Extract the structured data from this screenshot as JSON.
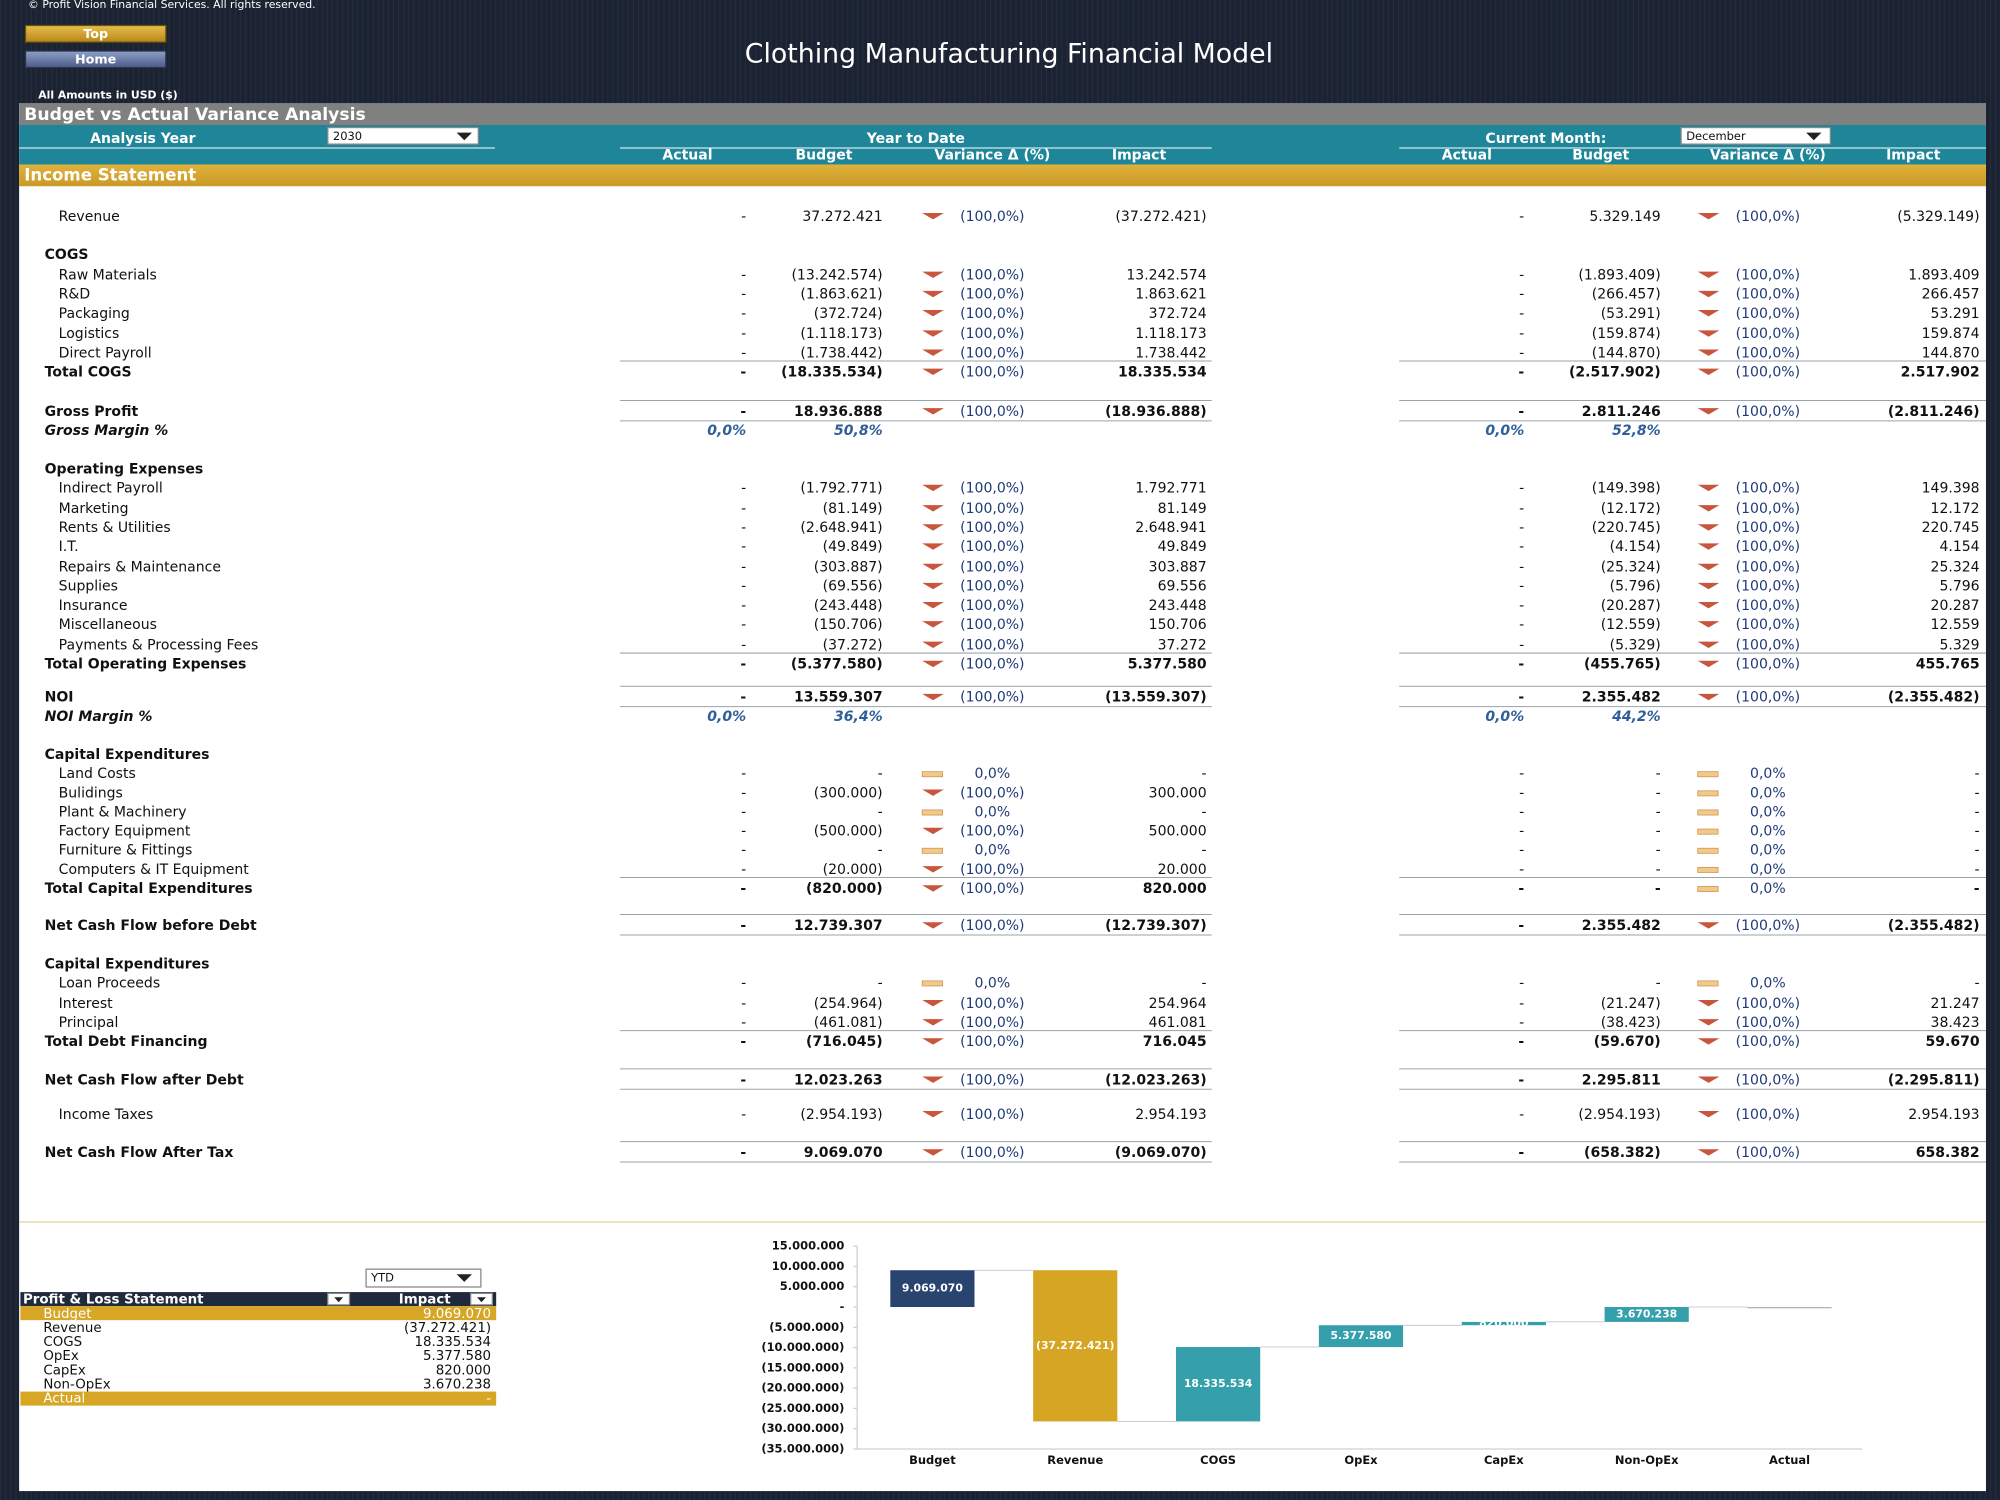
{
  "header": {
    "copyright": "© Profit Vision Financial Services. All rights reserved.",
    "buttons": [
      "Top",
      "Home"
    ],
    "title": "Clothing Manufacturing Financial Model",
    "currency_note": "All Amounts in  USD ($)"
  },
  "report": {
    "title": "Budget vs Actual Variance Analysis",
    "analysis_year_label": "Analysis Year",
    "analysis_year": "2030",
    "ytd_label": "Year to Date",
    "month_label": "Current Month:",
    "month": "December",
    "columns": [
      "Actual",
      "Budget",
      "Variance Δ  (%)",
      "Impact"
    ],
    "section": "Income Statement",
    "rows": [
      {
        "label": "Revenue",
        "ytd": [
          "-",
          "37.272.421",
          "(100,0%)",
          "(37.272.421)"
        ],
        "month": [
          "-",
          "5.329.149",
          "(100,0%)",
          "(5.329.149)"
        ]
      },
      {
        "label": "COGS"
      },
      {
        "label": "Raw Materials",
        "ytd": [
          "-",
          "(13.242.574)",
          "(100,0%)",
          "13.242.574"
        ],
        "month": [
          "-",
          "(1.893.409)",
          "(100,0%)",
          "1.893.409"
        ]
      },
      {
        "label": "R&D",
        "ytd": [
          "-",
          "(1.863.621)",
          "(100,0%)",
          "1.863.621"
        ],
        "month": [
          "-",
          "(266.457)",
          "(100,0%)",
          "266.457"
        ]
      },
      {
        "label": "Packaging",
        "ytd": [
          "-",
          "(372.724)",
          "(100,0%)",
          "372.724"
        ],
        "month": [
          "-",
          "(53.291)",
          "(100,0%)",
          "53.291"
        ]
      },
      {
        "label": "Logistics",
        "ytd": [
          "-",
          "(1.118.173)",
          "(100,0%)",
          "1.118.173"
        ],
        "month": [
          "-",
          "(159.874)",
          "(100,0%)",
          "159.874"
        ]
      },
      {
        "label": "Direct Payroll",
        "ytd": [
          "-",
          "(1.738.442)",
          "(100,0%)",
          "1.738.442"
        ],
        "month": [
          "-",
          "(144.870)",
          "(100,0%)",
          "144.870"
        ]
      },
      {
        "label": "Total COGS",
        "ytd": [
          "-",
          "(18.335.534)",
          "(100,0%)",
          "18.335.534"
        ],
        "month": [
          "-",
          "(2.517.902)",
          "(100,0%)",
          "2.517.902"
        ]
      },
      {
        "label": "Gross Profit",
        "ytd": [
          "-",
          "18.936.888",
          "(100,0%)",
          "(18.936.888)"
        ],
        "month": [
          "-",
          "2.811.246",
          "(100,0%)",
          "(2.811.246)"
        ]
      },
      {
        "label": "Gross Margin %",
        "ytd": [
          "0,0%",
          "50,8%"
        ],
        "month": [
          "0,0%",
          "52,8%"
        ]
      },
      {
        "label": "Operating Expenses"
      },
      {
        "label": "Indirect Payroll",
        "ytd": [
          "-",
          "(1.792.771)",
          "(100,0%)",
          "1.792.771"
        ],
        "month": [
          "-",
          "(149.398)",
          "(100,0%)",
          "149.398"
        ]
      },
      {
        "label": "Marketing",
        "ytd": [
          "-",
          "(81.149)",
          "(100,0%)",
          "81.149"
        ],
        "month": [
          "-",
          "(12.172)",
          "(100,0%)",
          "12.172"
        ]
      },
      {
        "label": "Rents & Utilities",
        "ytd": [
          "-",
          "(2.648.941)",
          "(100,0%)",
          "2.648.941"
        ],
        "month": [
          "-",
          "(220.745)",
          "(100,0%)",
          "220.745"
        ]
      },
      {
        "label": "I.T.",
        "ytd": [
          "-",
          "(49.849)",
          "(100,0%)",
          "49.849"
        ],
        "month": [
          "-",
          "(4.154)",
          "(100,0%)",
          "4.154"
        ]
      },
      {
        "label": "Repairs & Maintenance",
        "ytd": [
          "-",
          "(303.887)",
          "(100,0%)",
          "303.887"
        ],
        "month": [
          "-",
          "(25.324)",
          "(100,0%)",
          "25.324"
        ]
      },
      {
        "label": "Supplies",
        "ytd": [
          "-",
          "(69.556)",
          "(100,0%)",
          "69.556"
        ],
        "month": [
          "-",
          "(5.796)",
          "(100,0%)",
          "5.796"
        ]
      },
      {
        "label": "Insurance",
        "ytd": [
          "-",
          "(243.448)",
          "(100,0%)",
          "243.448"
        ],
        "month": [
          "-",
          "(20.287)",
          "(100,0%)",
          "20.287"
        ]
      },
      {
        "label": "Miscellaneous",
        "ytd": [
          "-",
          "(150.706)",
          "(100,0%)",
          "150.706"
        ],
        "month": [
          "-",
          "(12.559)",
          "(100,0%)",
          "12.559"
        ]
      },
      {
        "label": "Payments & Processing Fees",
        "ytd": [
          "-",
          "(37.272)",
          "(100,0%)",
          "37.272"
        ],
        "month": [
          "-",
          "(5.329)",
          "(100,0%)",
          "5.329"
        ]
      },
      {
        "label": "Total Operating Expenses",
        "ytd": [
          "-",
          "(5.377.580)",
          "(100,0%)",
          "5.377.580"
        ],
        "month": [
          "-",
          "(455.765)",
          "(100,0%)",
          "455.765"
        ]
      },
      {
        "label": "NOI",
        "ytd": [
          "-",
          "13.559.307",
          "(100,0%)",
          "(13.559.307)"
        ],
        "month": [
          "-",
          "2.355.482",
          "(100,0%)",
          "(2.355.482)"
        ]
      },
      {
        "label": "NOI Margin %",
        "ytd": [
          "0,0%",
          "36,4%"
        ],
        "month": [
          "0,0%",
          "44,2%"
        ]
      },
      {
        "label": "Capital Expenditures"
      },
      {
        "label": "Land Costs",
        "ytd": [
          "-",
          "-",
          "0,0%",
          "-"
        ],
        "month": [
          "-",
          "-",
          "0,0%",
          "-"
        ]
      },
      {
        "label": "Bulidings",
        "ytd": [
          "-",
          "(300.000)",
          "(100,0%)",
          "300.000"
        ],
        "month": [
          "-",
          "-",
          "0,0%",
          "-"
        ]
      },
      {
        "label": "Plant & Machinery",
        "ytd": [
          "-",
          "-",
          "0,0%",
          "-"
        ],
        "month": [
          "-",
          "-",
          "0,0%",
          "-"
        ]
      },
      {
        "label": "Factory Equipment",
        "ytd": [
          "-",
          "(500.000)",
          "(100,0%)",
          "500.000"
        ],
        "month": [
          "-",
          "-",
          "0,0%",
          "-"
        ]
      },
      {
        "label": "Furniture & Fittings",
        "ytd": [
          "-",
          "-",
          "0,0%",
          "-"
        ],
        "month": [
          "-",
          "-",
          "0,0%",
          "-"
        ]
      },
      {
        "label": "Computers & IT Equipment",
        "ytd": [
          "-",
          "(20.000)",
          "(100,0%)",
          "20.000"
        ],
        "month": [
          "-",
          "-",
          "0,0%",
          "-"
        ]
      },
      {
        "label": "Total Capital Expenditures",
        "ytd": [
          "-",
          "(820.000)",
          "(100,0%)",
          "820.000"
        ],
        "month": [
          "-",
          "-",
          "0,0%",
          "-"
        ]
      },
      {
        "label": "Net Cash Flow before Debt",
        "ytd": [
          "-",
          "12.739.307",
          "(100,0%)",
          "(12.739.307)"
        ],
        "month": [
          "-",
          "2.355.482",
          "(100,0%)",
          "(2.355.482)"
        ]
      },
      {
        "label": "Capital Expenditures"
      },
      {
        "label": "Loan Proceeds",
        "ytd": [
          "-",
          "-",
          "0,0%",
          "-"
        ],
        "month": [
          "-",
          "-",
          "0,0%",
          "-"
        ]
      },
      {
        "label": "Interest",
        "ytd": [
          "-",
          "(254.964)",
          "(100,0%)",
          "254.964"
        ],
        "month": [
          "-",
          "(21.247)",
          "(100,0%)",
          "21.247"
        ]
      },
      {
        "label": "Principal",
        "ytd": [
          "-",
          "(461.081)",
          "(100,0%)",
          "461.081"
        ],
        "month": [
          "-",
          "(38.423)",
          "(100,0%)",
          "38.423"
        ]
      },
      {
        "label": "Total Debt Financing",
        "ytd": [
          "-",
          "(716.045)",
          "(100,0%)",
          "716.045"
        ],
        "month": [
          "-",
          "(59.670)",
          "(100,0%)",
          "59.670"
        ]
      },
      {
        "label": "Net Cash Flow after Debt",
        "ytd": [
          "-",
          "12.023.263",
          "(100,0%)",
          "(12.023.263)"
        ],
        "month": [
          "-",
          "2.295.811",
          "(100,0%)",
          "(2.295.811)"
        ]
      },
      {
        "label": "Income Taxes",
        "ytd": [
          "-",
          "(2.954.193)",
          "(100,0%)",
          "2.954.193"
        ],
        "month": [
          "-",
          "(2.954.193)",
          "(100,0%)",
          "2.954.193"
        ]
      },
      {
        "label": "Net Cash Flow After Tax",
        "ytd": [
          "-",
          "9.069.070",
          "(100,0%)",
          "(9.069.070)"
        ],
        "month": [
          "-",
          "(658.382)",
          "(100,0%)",
          "658.382"
        ]
      }
    ]
  },
  "summary": {
    "period": "YTD",
    "columns": [
      "Profit & Loss Statement",
      "Impact"
    ],
    "rows": [
      [
        "Budget",
        "9.069.070"
      ],
      [
        "Revenue",
        "(37.272.421)"
      ],
      [
        "COGS",
        "18.335.534"
      ],
      [
        "OpEx",
        "5.377.580"
      ],
      [
        "CapEx",
        "820.000"
      ],
      [
        "Non-OpEx",
        "3.670.238"
      ],
      [
        "Actual",
        "-"
      ]
    ]
  },
  "chart_data": {
    "type": "waterfall",
    "categories": [
      "Budget",
      "Revenue",
      "COGS",
      "OpEx",
      "CapEx",
      "Non-OpEx",
      "Actual"
    ],
    "values": [
      9069070,
      -37272421,
      18335534,
      5377580,
      820000,
      3670238,
      0
    ],
    "value_labels": [
      "9.069.070",
      "(37.272.421)",
      "18.335.534",
      "5.377.580",
      "820.000",
      "3.670.238",
      null
    ],
    "colors": [
      "#1f3a68",
      "#d4a017",
      "#2a9aa8",
      "#2a9aa8",
      "#2a9aa8",
      "#2a9aa8",
      "#7f7f7f"
    ],
    "ylim": [
      -35000000,
      15000000
    ],
    "yticks": [
      {
        "value": 15000000,
        "label": "15.000.000"
      },
      {
        "value": 10000000,
        "label": "10.000.000"
      },
      {
        "value": 5000000,
        "label": "5.000.000"
      },
      {
        "value": 0,
        "label": "-"
      },
      {
        "value": -5000000,
        "label": "(5.000.000)"
      },
      {
        "value": -10000000,
        "label": "(10.000.000)"
      },
      {
        "value": -15000000,
        "label": "(15.000.000)"
      },
      {
        "value": -20000000,
        "label": "(20.000.000)"
      },
      {
        "value": -25000000,
        "label": "(25.000.000)"
      },
      {
        "value": -30000000,
        "label": "(30.000.000)"
      },
      {
        "value": -35000000,
        "label": "(35.000.000)"
      }
    ]
  }
}
